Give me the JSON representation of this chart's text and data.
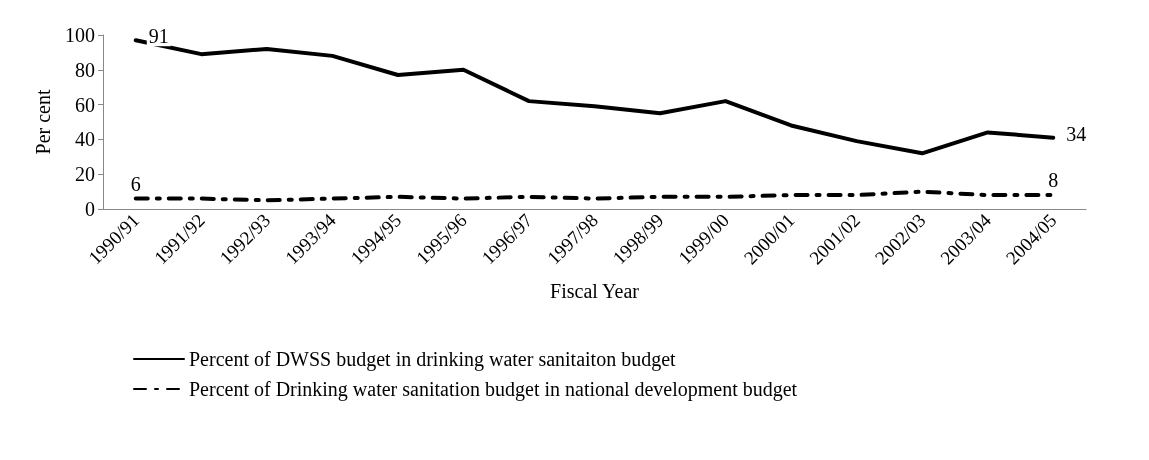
{
  "chart_data": {
    "type": "line",
    "xlabel": "Fiscal Year",
    "ylabel": "Per cent",
    "categories": [
      "1990/91",
      "1991/92",
      "1992/93",
      "1993/94",
      "1994/95",
      "1995/96",
      "1996/97",
      "1997/98",
      "1998/99",
      "1999/00",
      "2000/01",
      "2001/02",
      "2002/03",
      "2003/04",
      "2004/05"
    ],
    "series": [
      {
        "name": "Percent of DWSS budget in drinking water sanitaiton budget",
        "color": "#000000",
        "line_style": "solid",
        "values": [
          97,
          89,
          92,
          88,
          77,
          80,
          62,
          59,
          55,
          62,
          48,
          39,
          32,
          44,
          41
        ]
      },
      {
        "name": "Percent of Drinking water sanitation budget in national development budget",
        "color": "#000000",
        "line_style": "dashed",
        "values": [
          6,
          6,
          5,
          6,
          7,
          6,
          7,
          6,
          7,
          7,
          8,
          8,
          10,
          8,
          8
        ],
        "value_labels": [
          "6",
          null,
          null,
          null,
          null,
          null,
          null,
          null,
          null,
          null,
          null,
          null,
          null,
          null,
          "8"
        ]
      }
    ],
    "annotations": [
      {
        "text": "91",
        "x": "1990/91",
        "y": 97
      },
      {
        "text": "34",
        "x": "2004/05",
        "y": 41
      }
    ],
    "ylim": [
      0,
      100
    ],
    "yticks": [
      0,
      20,
      40,
      60,
      80,
      100
    ],
    "grid": false,
    "legend": "bottom",
    "marker": "none"
  }
}
